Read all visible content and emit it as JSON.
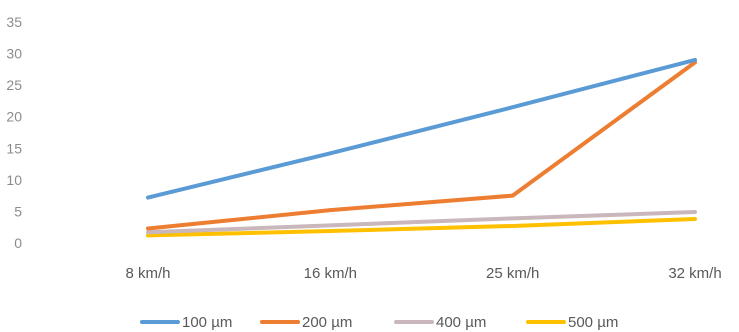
{
  "chart_data": {
    "type": "line",
    "title": "",
    "xlabel": "",
    "ylabel": "",
    "categories": [
      "8 km/h",
      "16 km/h",
      "25 km/h",
      "32 km/h"
    ],
    "ylim": [
      0,
      35
    ],
    "yticks": [
      0,
      5,
      10,
      15,
      20,
      25,
      30,
      35
    ],
    "grid": false,
    "legend_position": "bottom",
    "series": [
      {
        "name": "100 µm",
        "color": "#5b9bd5",
        "values": [
          7.2,
          14.2,
          21.5,
          29.0
        ]
      },
      {
        "name": "200 µm",
        "color": "#ed7d31",
        "values": [
          2.3,
          5.2,
          7.5,
          28.6
        ]
      },
      {
        "name": "400 µm",
        "color": "#c9b7bb",
        "values": [
          1.7,
          2.8,
          3.9,
          4.9
        ]
      },
      {
        "name": "500 µm",
        "color": "#ffc000",
        "values": [
          1.2,
          1.9,
          2.7,
          3.8
        ]
      }
    ]
  }
}
